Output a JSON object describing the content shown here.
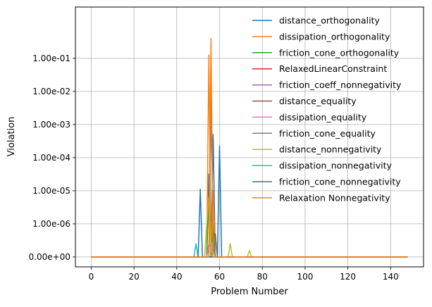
{
  "chart_data": {
    "type": "line",
    "title": "",
    "xlabel": "Problem Number",
    "ylabel": "Violation",
    "xlim": [
      -7.4,
      155.4
    ],
    "ylim_log": [
      -7.3,
      0.55
    ],
    "x_ticks": [
      0,
      20,
      40,
      60,
      80,
      100,
      120,
      140
    ],
    "x_tick_labels": [
      "0",
      "20",
      "40",
      "60",
      "80",
      "100",
      "120",
      "140"
    ],
    "y_ticks_log": [
      -7.0,
      -6.0,
      -5.0,
      -4.0,
      -3.0,
      -2.0,
      -1.0
    ],
    "y_tick_labels": [
      "0.00e+00",
      "1.00e-06",
      "1.00e-05",
      "1.00e-04",
      "1.00e-03",
      "1.00e-02",
      "1.00e-01"
    ],
    "grid": true,
    "legend_position": "top-right",
    "x_range": [
      0,
      148
    ],
    "baseline_log": -7.0,
    "series": [
      {
        "name": "distance_orthogonality",
        "color": "#1f77b4",
        "peaks": [
          [
            55,
            -4.5
          ],
          [
            57,
            -3.3
          ]
        ]
      },
      {
        "name": "dissipation_orthogonality",
        "color": "#ff7f0e",
        "peaks": [
          [
            55,
            -0.9
          ],
          [
            57,
            -5.0
          ]
        ]
      },
      {
        "name": "friction_cone_orthogonality",
        "color": "#2ca02c",
        "peaks": [
          [
            55,
            -5.1
          ],
          [
            57,
            -6.0
          ]
        ]
      },
      {
        "name": "RelaxedLinearConstraint",
        "color": "#d62728",
        "peaks": []
      },
      {
        "name": "friction_coeff_nonnegativity",
        "color": "#9467bd",
        "peaks": [
          [
            55,
            -6.7
          ],
          [
            56,
            -6.6
          ],
          [
            57,
            -6.7
          ]
        ]
      },
      {
        "name": "distance_equality",
        "color": "#8c564b",
        "peaks": [
          [
            56,
            -2.4
          ],
          [
            57,
            -6.4
          ],
          [
            58,
            -6.3
          ]
        ]
      },
      {
        "name": "dissipation_equality",
        "color": "#e377c2",
        "peaks": [
          [
            55,
            -6.6
          ],
          [
            56,
            -6.5
          ]
        ]
      },
      {
        "name": "friction_cone_equality",
        "color": "#7f7f7f",
        "peaks": [
          [
            56,
            -2.1
          ],
          [
            57,
            -6.5
          ]
        ]
      },
      {
        "name": "distance_nonnegativity",
        "color": "#bcbd22",
        "peaks": [
          [
            54,
            -6.0
          ],
          [
            55,
            -5.2
          ],
          [
            56,
            -6.8
          ],
          [
            65,
            -6.6
          ],
          [
            74,
            -6.8
          ]
        ]
      },
      {
        "name": "dissipation_nonnegativity",
        "color": "#17becf",
        "peaks": [
          [
            49,
            -6.6
          ]
        ]
      },
      {
        "name": "friction_cone_nonnegativity",
        "color": "#1f77b4",
        "peaks": [
          [
            51,
            -4.95
          ],
          [
            60,
            -3.65
          ]
        ]
      },
      {
        "name": "Relaxation Nonnegativity",
        "color": "#ff7f0e",
        "peaks": [
          [
            56,
            -0.4
          ]
        ]
      }
    ]
  }
}
